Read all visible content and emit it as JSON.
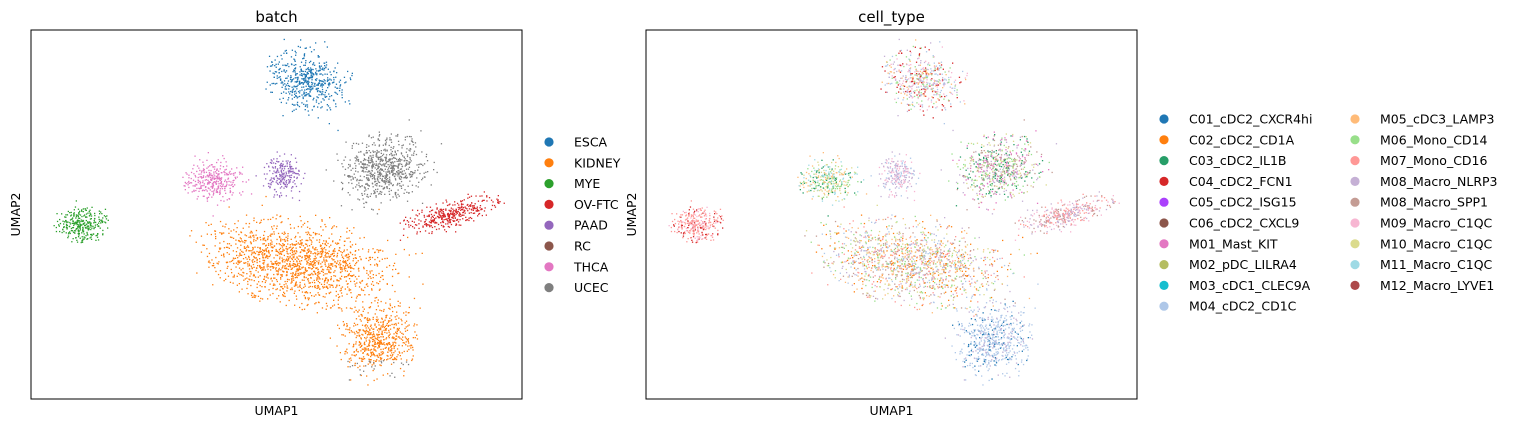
{
  "chart_data": [
    {
      "type": "scatter",
      "title": "batch",
      "xlabel": "UMAP1",
      "ylabel": "UMAP2",
      "xticks": "none",
      "yticks": "none",
      "grid": false,
      "legend_position": "right",
      "point_size": "small",
      "series": [
        {
          "name": "ESCA",
          "color": "#1f77b4"
        },
        {
          "name": "KIDNEY",
          "color": "#ff7f0e"
        },
        {
          "name": "MYE",
          "color": "#2ca02c"
        },
        {
          "name": "OV-FTC",
          "color": "#d62728"
        },
        {
          "name": "PAAD",
          "color": "#9467bd"
        },
        {
          "name": "RC",
          "color": "#8c564b"
        },
        {
          "name": "THCA",
          "color": "#e377c2"
        },
        {
          "name": "UCEC",
          "color": "#7f7f7f"
        }
      ]
    },
    {
      "type": "scatter",
      "title": "cell_type",
      "xlabel": "UMAP1",
      "ylabel": "UMAP2",
      "xticks": "none",
      "yticks": "none",
      "grid": false,
      "legend_position": "right",
      "legend_columns": 2,
      "point_size": "small",
      "series": [
        {
          "name": "C01_cDC2_CXCR4hi",
          "color": "#1f77b4"
        },
        {
          "name": "C02_cDC2_CD1A",
          "color": "#ff7f0e"
        },
        {
          "name": "C03_cDC2_IL1B",
          "color": "#279e68"
        },
        {
          "name": "C04_cDC2_FCN1",
          "color": "#d62728"
        },
        {
          "name": "C05_cDC2_ISG15",
          "color": "#aa40fc"
        },
        {
          "name": "C06_cDC2_CXCL9",
          "color": "#8c564b"
        },
        {
          "name": "M01_Mast_KIT",
          "color": "#e377c2"
        },
        {
          "name": "M02_pDC_LILRA4",
          "color": "#b5bd61"
        },
        {
          "name": "M03_cDC1_CLEC9A",
          "color": "#17becf"
        },
        {
          "name": "M04_cDC2_CD1C",
          "color": "#aec7e8"
        },
        {
          "name": "M05_cDC3_LAMP3",
          "color": "#ffbb78"
        },
        {
          "name": "M06_Mono_CD14",
          "color": "#98df8a"
        },
        {
          "name": "M07_Mono_CD16",
          "color": "#ff9896"
        },
        {
          "name": "M08_Macro_NLRP3",
          "color": "#c5b0d5"
        },
        {
          "name": "M08_Macro_SPP1",
          "color": "#c49c94"
        },
        {
          "name": "M09_Macro_C1QC",
          "color": "#f7b6d2"
        },
        {
          "name": "M10_Macro_C1QC",
          "color": "#dbdb8d"
        },
        {
          "name": "M11_Macro_C1QC",
          "color": "#9edae5"
        },
        {
          "name": "M12_Macro_LYVE1",
          "color": "#ad494a"
        }
      ]
    }
  ]
}
